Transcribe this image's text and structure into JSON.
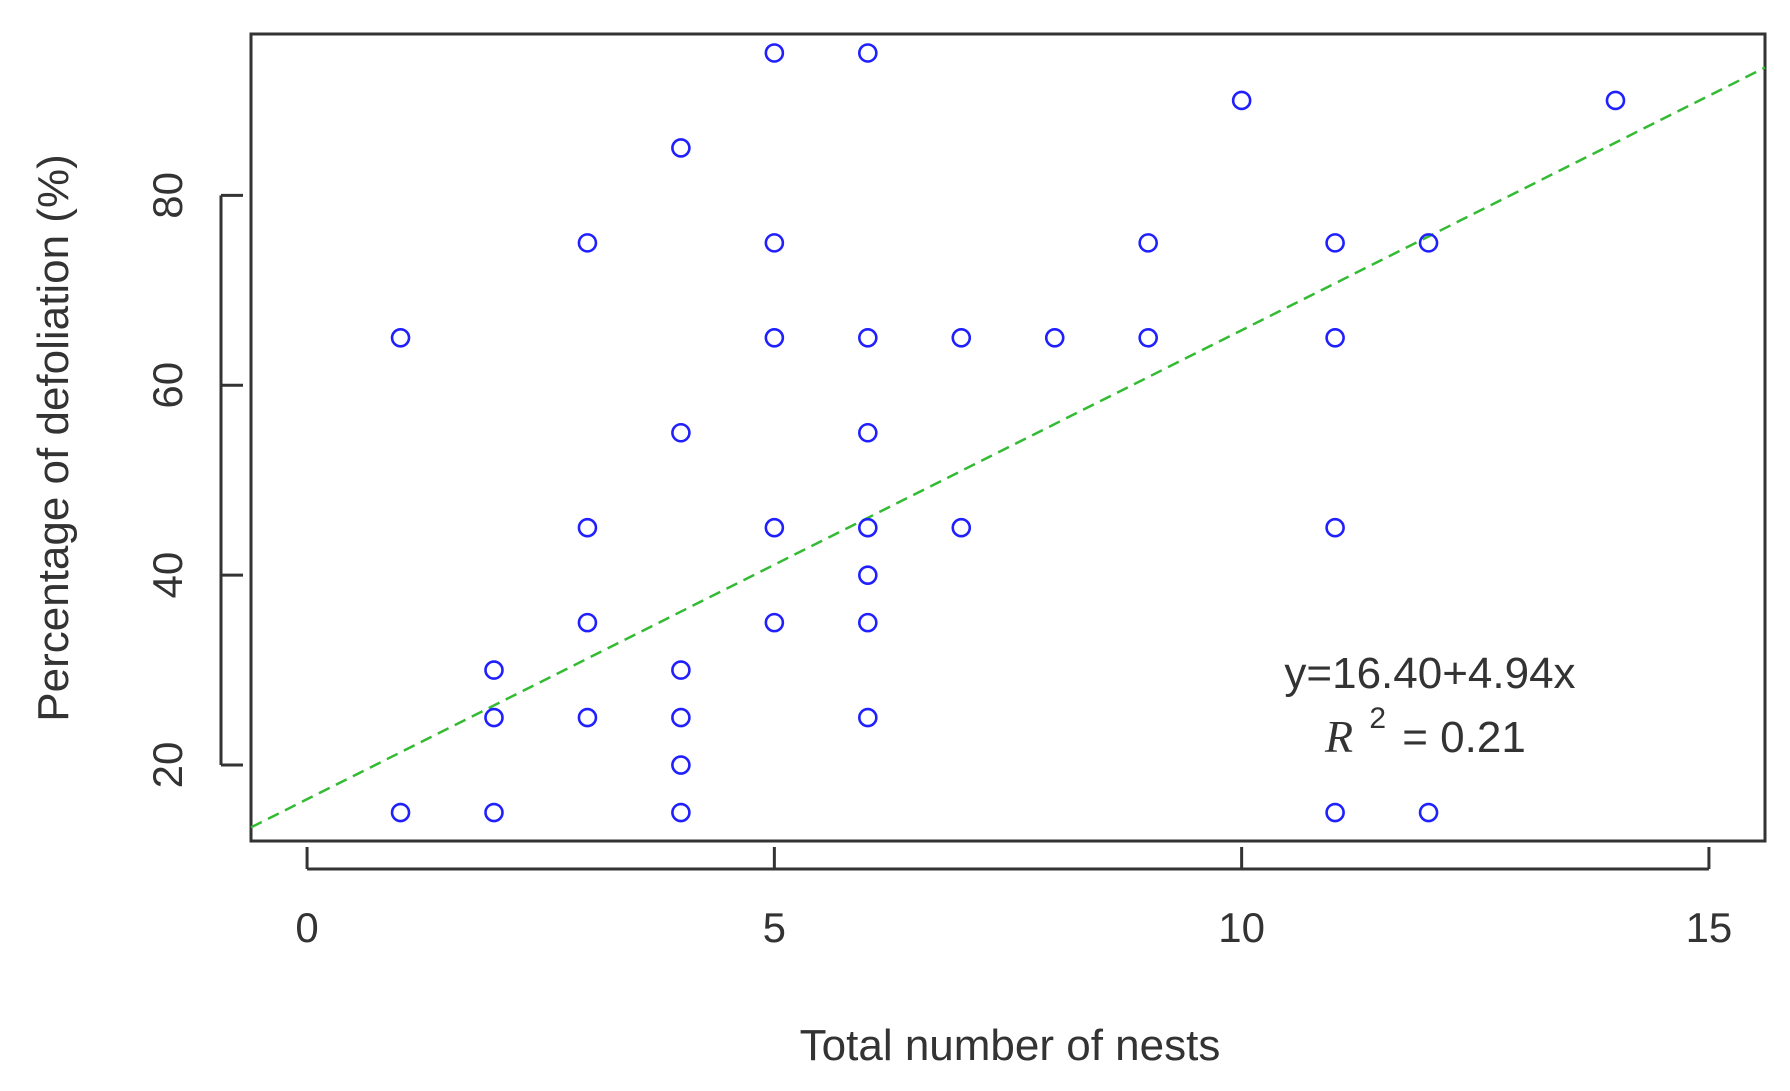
{
  "chart_data": {
    "type": "scatter",
    "title": "",
    "xlabel": "Total number of nests",
    "ylabel": "Percentage of defoliation (%)",
    "xlim": [
      -0.6,
      15.6
    ],
    "ylim": [
      12,
      97
    ],
    "xticks": [
      0,
      5,
      10,
      15
    ],
    "xtick_labels": [
      "0",
      "5",
      "10",
      "15"
    ],
    "yticks": [
      20,
      40,
      60,
      80
    ],
    "ytick_labels": [
      "20",
      "40",
      "60",
      "80"
    ],
    "grid": false,
    "legend": "none",
    "marker": "open-circle",
    "point_color": "#2020ff",
    "line_color": "#33bb33",
    "points": [
      {
        "x": 1,
        "y": 65
      },
      {
        "x": 1,
        "y": 15
      },
      {
        "x": 2,
        "y": 30
      },
      {
        "x": 2,
        "y": 25
      },
      {
        "x": 2,
        "y": 15
      },
      {
        "x": 3,
        "y": 75
      },
      {
        "x": 3,
        "y": 45
      },
      {
        "x": 3,
        "y": 35
      },
      {
        "x": 3,
        "y": 25
      },
      {
        "x": 4,
        "y": 85
      },
      {
        "x": 4,
        "y": 55
      },
      {
        "x": 4,
        "y": 30
      },
      {
        "x": 4,
        "y": 25
      },
      {
        "x": 4,
        "y": 20
      },
      {
        "x": 4,
        "y": 15
      },
      {
        "x": 5,
        "y": 95
      },
      {
        "x": 5,
        "y": 75
      },
      {
        "x": 5,
        "y": 65
      },
      {
        "x": 5,
        "y": 45
      },
      {
        "x": 5,
        "y": 35
      },
      {
        "x": 6,
        "y": 95
      },
      {
        "x": 6,
        "y": 65
      },
      {
        "x": 6,
        "y": 55
      },
      {
        "x": 6,
        "y": 45
      },
      {
        "x": 6,
        "y": 40
      },
      {
        "x": 6,
        "y": 35
      },
      {
        "x": 6,
        "y": 25
      },
      {
        "x": 7,
        "y": 65
      },
      {
        "x": 7,
        "y": 45
      },
      {
        "x": 8,
        "y": 65
      },
      {
        "x": 9,
        "y": 75
      },
      {
        "x": 9,
        "y": 65
      },
      {
        "x": 10,
        "y": 90
      },
      {
        "x": 11,
        "y": 75
      },
      {
        "x": 11,
        "y": 65
      },
      {
        "x": 11,
        "y": 45
      },
      {
        "x": 11,
        "y": 15
      },
      {
        "x": 12,
        "y": 75
      },
      {
        "x": 12,
        "y": 15
      },
      {
        "x": 14,
        "y": 90
      }
    ],
    "regression": {
      "intercept": 16.4,
      "slope": 4.94,
      "style": "dashed",
      "equation_label": "y=16.40+4.94x",
      "r2_symbol": "R",
      "r2_exponent": "2",
      "r2_value_label": "= 0.21"
    }
  }
}
